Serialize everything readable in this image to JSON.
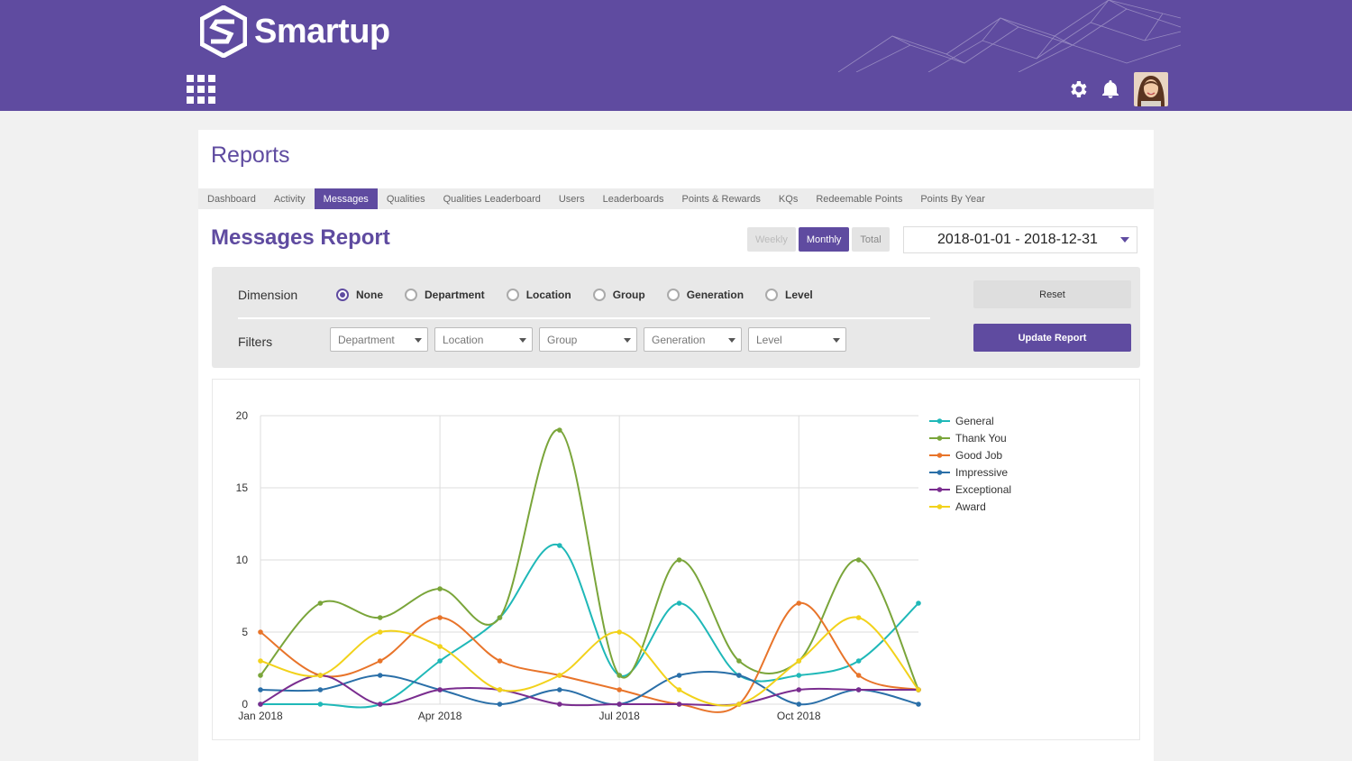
{
  "header": {
    "brand": "Smartup",
    "icons": [
      "apps-grid-icon",
      "gear-icon",
      "bell-icon"
    ]
  },
  "page": {
    "title": "Reports",
    "tabs": [
      {
        "label": "Dashboard",
        "active": false
      },
      {
        "label": "Activity",
        "active": false
      },
      {
        "label": "Messages",
        "active": true
      },
      {
        "label": "Qualities",
        "active": false
      },
      {
        "label": "Qualities Leaderboard",
        "active": false
      },
      {
        "label": "Users",
        "active": false
      },
      {
        "label": "Leaderboards",
        "active": false
      },
      {
        "label": "Points & Rewards",
        "active": false
      },
      {
        "label": "KQs",
        "active": false
      },
      {
        "label": "Redeemable Points",
        "active": false
      },
      {
        "label": "Points By Year",
        "active": false
      }
    ]
  },
  "report": {
    "title": "Messages Report",
    "period": {
      "weekly": "Weekly",
      "monthly": "Monthly",
      "total": "Total",
      "selected": "Monthly"
    },
    "date_range": "2018-01-01 - 2018-12-31"
  },
  "filters": {
    "dimension_label": "Dimension",
    "dimensions": [
      "None",
      "Department",
      "Location",
      "Group",
      "Generation",
      "Level"
    ],
    "selected_dimension": "None",
    "filters_label": "Filters",
    "selects": [
      "Department",
      "Location",
      "Group",
      "Generation",
      "Level"
    ],
    "reset_label": "Reset",
    "update_label": "Update Report"
  },
  "chart_data": {
    "type": "line",
    "x": [
      "2018-01",
      "2018-02",
      "2018-03",
      "2018-04",
      "2018-05",
      "2018-06",
      "2018-07",
      "2018-08",
      "2018-09",
      "2018-10",
      "2018-11",
      "2018-12"
    ],
    "xticks": [
      {
        "label": "Jan 2018",
        "index": 0
      },
      {
        "label": "Apr 2018",
        "index": 3
      },
      {
        "label": "Jul 2018",
        "index": 6
      },
      {
        "label": "Oct 2018",
        "index": 9
      }
    ],
    "yticks": [
      0,
      5,
      10,
      15,
      20
    ],
    "ylim": [
      0,
      20
    ],
    "grid": true,
    "legend": "right",
    "series": [
      {
        "name": "General",
        "color": "#1fb8b8",
        "values": [
          0,
          0,
          0,
          3,
          6,
          11,
          2,
          7,
          2,
          2,
          3,
          7
        ]
      },
      {
        "name": "Thank You",
        "color": "#7aa53a",
        "values": [
          2,
          7,
          6,
          8,
          6,
          19,
          2,
          10,
          3,
          3,
          10,
          1
        ]
      },
      {
        "name": "Good Job",
        "color": "#e8742a",
        "values": [
          5,
          2,
          3,
          6,
          3,
          2,
          1,
          0,
          0,
          7,
          2,
          1
        ]
      },
      {
        "name": "Impressive",
        "color": "#2a6fa8",
        "values": [
          1,
          1,
          2,
          1,
          0,
          1,
          0,
          2,
          2,
          0,
          1,
          0
        ]
      },
      {
        "name": "Exceptional",
        "color": "#7a2d8f",
        "values": [
          0,
          2,
          0,
          1,
          1,
          0,
          0,
          0,
          0,
          1,
          1,
          1
        ]
      },
      {
        "name": "Award",
        "color": "#f2d21b",
        "values": [
          3,
          2,
          5,
          4,
          1,
          2,
          5,
          1,
          0,
          3,
          6,
          1
        ]
      }
    ]
  }
}
